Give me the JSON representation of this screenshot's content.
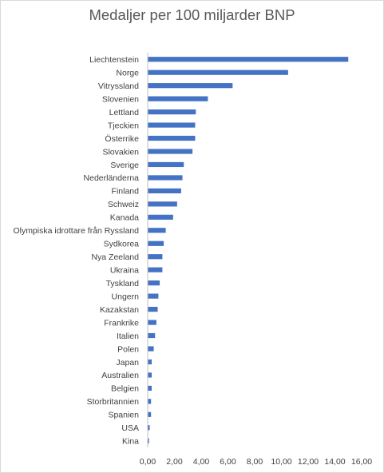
{
  "chart_data": {
    "type": "bar",
    "orientation": "horizontal",
    "title": "Medaljer per 100 miljarder BNP",
    "xlabel": "",
    "ylabel": "",
    "xlim": [
      0,
      16
    ],
    "x_ticks": [
      "0,00",
      "2,00",
      "4,00",
      "6,00",
      "8,00",
      "10,00",
      "12,00",
      "14,00",
      "16,00"
    ],
    "grid": false,
    "legend": "none",
    "bar_color": "#4472c4",
    "categories": [
      "Liechtenstein",
      "Norge",
      "Vitryssland",
      "Slovenien",
      "Lettland",
      "Tjeckien",
      "Österrike",
      "Slovakien",
      "Sverige",
      "Nederländerna",
      "Finland",
      "Schweiz",
      "Kanada",
      "Olympiska idrottare från Ryssland",
      "Sydkorea",
      "Nya Zeeland",
      "Ukraina",
      "Tyskland",
      "Ungern",
      "Kazakstan",
      "Frankrike",
      "Italien",
      "Polen",
      "Japan",
      "Australien",
      "Belgien",
      "Storbritannien",
      "Spanien",
      "USA",
      "Kina"
    ],
    "values": [
      15.0,
      10.5,
      6.35,
      4.5,
      3.6,
      3.55,
      3.55,
      3.35,
      2.7,
      2.6,
      2.5,
      2.2,
      1.9,
      1.35,
      1.2,
      1.1,
      1.1,
      0.9,
      0.8,
      0.75,
      0.65,
      0.55,
      0.45,
      0.3,
      0.3,
      0.3,
      0.25,
      0.25,
      0.15,
      0.1
    ]
  }
}
